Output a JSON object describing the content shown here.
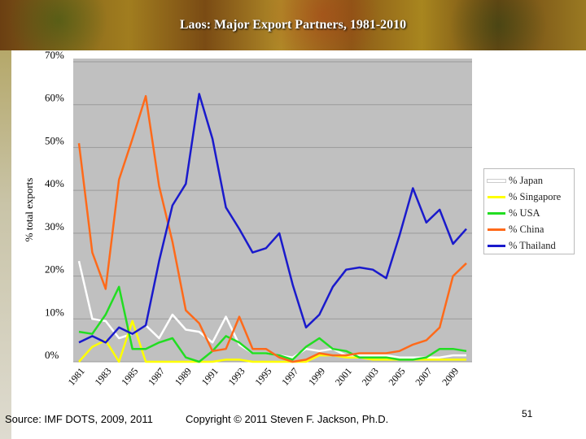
{
  "chart_data": {
    "type": "line",
    "title": "Laos: Major Export Partners, 1981-2010",
    "ylabel": "% total exports",
    "xlabel": "",
    "ylim": [
      0,
      70
    ],
    "y_ticks": [
      "0%",
      "10%",
      "20%",
      "30%",
      "40%",
      "50%",
      "60%",
      "70%"
    ],
    "x_tick_labels": [
      "1981",
      "1983",
      "1985",
      "1987",
      "1989",
      "1991",
      "1993",
      "1995",
      "1997",
      "1999",
      "2001",
      "2003",
      "2005",
      "2007",
      "2009"
    ],
    "x": [
      1981,
      1982,
      1983,
      1984,
      1985,
      1986,
      1987,
      1988,
      1989,
      1990,
      1991,
      1992,
      1993,
      1994,
      1995,
      1996,
      1997,
      1998,
      1999,
      2000,
      2001,
      2002,
      2003,
      2004,
      2005,
      2006,
      2007,
      2008,
      2009,
      2010
    ],
    "grid": "horizontal",
    "legend_position": "right",
    "series": [
      {
        "name": "% Japan",
        "color": "#ffffff",
        "values": [
          23.5,
          10,
          9.5,
          5.5,
          6.5,
          8.5,
          5.5,
          11,
          7.5,
          7,
          4.5,
          10.5,
          4,
          2,
          2,
          1.5,
          1,
          3,
          2.5,
          3,
          1.5,
          1.5,
          1.5,
          1.5,
          1,
          1,
          1,
          1,
          1.5,
          1.5
        ]
      },
      {
        "name": "% Singapore",
        "color": "#ffff00",
        "values": [
          0,
          3.5,
          5,
          0,
          9.5,
          0,
          0,
          0,
          0,
          0,
          0,
          0.5,
          0.5,
          0,
          0,
          0,
          0,
          0,
          1.5,
          1.5,
          1,
          1,
          0.5,
          0.5,
          0.5,
          0.5,
          0.5,
          0.5,
          0.5,
          0.5
        ]
      },
      {
        "name": "% USA",
        "color": "#22dd22",
        "values": [
          7,
          6.5,
          11,
          17.5,
          3,
          3,
          4.5,
          5.5,
          1,
          0,
          2.5,
          6,
          4.5,
          2,
          2,
          1.5,
          0.5,
          3.5,
          5.5,
          3,
          2.5,
          1,
          1,
          1,
          0.5,
          0.5,
          1,
          3,
          3,
          2.5
        ]
      },
      {
        "name": "% China",
        "color": "#ff6a1a",
        "values": [
          51,
          25.5,
          17,
          42.5,
          52,
          62,
          41,
          28,
          12,
          9,
          2.5,
          3,
          10.5,
          3,
          3,
          1,
          0,
          0.5,
          2,
          1.5,
          1.5,
          2,
          2,
          2,
          2.5,
          4,
          5,
          8,
          20,
          23
        ]
      },
      {
        "name": "% Thailand",
        "color": "#1a1acc",
        "values": [
          4.5,
          6,
          4.5,
          8,
          6.5,
          8.5,
          23.5,
          36.5,
          41.5,
          62.5,
          52,
          36,
          31,
          25.5,
          26.5,
          30,
          18,
          8,
          11,
          17.5,
          21.5,
          22,
          21.5,
          19.5,
          29.5,
          40.5,
          32.5,
          35.5,
          27.5,
          31
        ]
      }
    ]
  },
  "footer": {
    "source": "Source: IMF DOTS, 2009, 2011",
    "copyright": "Copyright © 2011 Steven F. Jackson, Ph.D.",
    "page_number": "51"
  }
}
